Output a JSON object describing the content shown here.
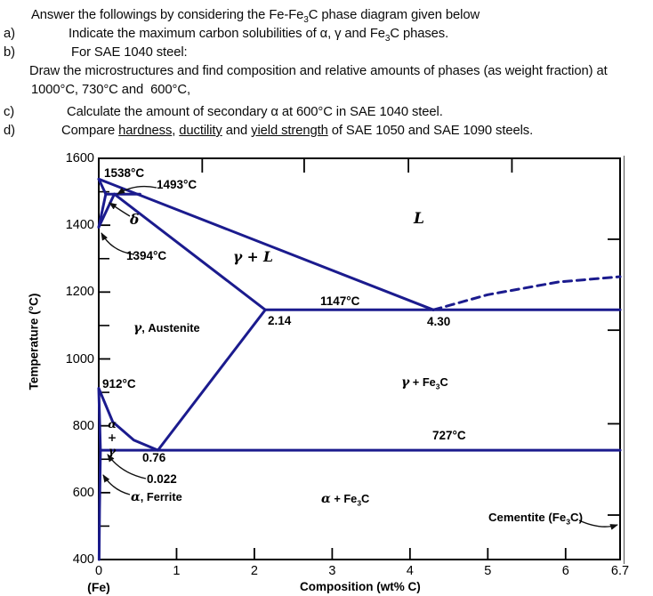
{
  "colors": {
    "phase_line": "#1b1b8e",
    "leader": "#111111",
    "frame": "#000000"
  },
  "question": {
    "intro": {
      "pre": "Answer the followings by considering the Fe-Fe",
      "sub": "3",
      "post": "C phase diagram given below"
    },
    "a": {
      "label": "a)",
      "pre": "Indicate the maximum carbon solubilities of α, γ and Fe",
      "sub": "3",
      "post": "C phases."
    },
    "b": {
      "label": "b)",
      "text": "For SAE 1040 steel:",
      "cont1": "Draw the microstructures and find composition and relative amounts of phases (as weight fraction) at",
      "cont2": "1000°C, 730°C and  600°C,"
    },
    "c": {
      "label": "c)",
      "text": "Calculate the amount of secondary α at 600°C in SAE 1040 steel."
    },
    "d": {
      "label": "d)",
      "p1": "Compare ",
      "u1": "hardness",
      "p2": ", ",
      "u2": "ductility",
      "p3": " and ",
      "u3": "yield strength",
      "p4": " of SAE 1050 and SAE 1090 steels."
    }
  },
  "diagram": {
    "y_axis_title": "Temperature (°C)",
    "x_axis_title": "Composition (wt% C)",
    "fe_label": "(Fe)",
    "callouts": {
      "t1538": "1538°C",
      "t1493": "1493°C",
      "t1394": "1394°C",
      "t1147": "1147°C",
      "t912": "912°C",
      "t727": "727°C",
      "c214": "2.14",
      "c430": "4.30",
      "c076": "0.76",
      "c0022": "0.022"
    },
    "regions": {
      "delta": "δ",
      "gamma_plus_L": "γ + L",
      "liquid": "L",
      "gamma_austenite": {
        "greek": "γ",
        "rest": ", Austenite"
      },
      "alpha_stack": {
        "l1": "α",
        "l2": "+",
        "l3": "γ"
      },
      "alpha_ferrite": {
        "greek": "α",
        "rest": ", Ferrite"
      },
      "alpha_fe3c": {
        "greek": "α",
        "mid": " + Fe",
        "sub": "3",
        "end": "C"
      },
      "gamma_fe3c": {
        "greek": "γ",
        "mid": " + Fe",
        "sub": "3",
        "end": "C"
      },
      "cementite": {
        "pre": "Cementite (Fe",
        "sub": "3",
        "end": "C)"
      }
    }
  },
  "chart_data": {
    "type": "line",
    "title": "Fe-Fe3C phase diagram",
    "xlabel": "Composition (wt% C)",
    "ylabel": "Temperature (°C)",
    "xlim": [
      0,
      6.7
    ],
    "ylim": [
      400,
      1600
    ],
    "grid": false,
    "axes": {
      "x_major": [
        {
          "v": 0,
          "label": "0"
        },
        {
          "v": 1,
          "label": "1"
        },
        {
          "v": 2,
          "label": "2"
        },
        {
          "v": 3,
          "label": "3"
        },
        {
          "v": 4,
          "label": "4"
        },
        {
          "v": 5,
          "label": "5"
        },
        {
          "v": 6,
          "label": "6"
        },
        {
          "v": 6.7,
          "label": "6.7"
        }
      ],
      "y_major": [
        {
          "v": 400,
          "label": "400"
        },
        {
          "v": 600,
          "label": "600"
        },
        {
          "v": 800,
          "label": "800"
        },
        {
          "v": 1000,
          "label": "1000"
        },
        {
          "v": 1200,
          "label": "1200"
        },
        {
          "v": 1400,
          "label": "1400"
        },
        {
          "v": 1600,
          "label": "1600"
        }
      ],
      "y_minor": [
        500,
        700,
        900,
        1100,
        1300,
        1500
      ],
      "top_ticks": [
        1.33,
        2.64,
        3.98,
        5.31
      ],
      "right_ticks": [
        1358,
        1086,
        806,
        533
      ]
    },
    "key_points": {
      "melting_Fe_C": 1538,
      "peritectic_C": 1493,
      "delta_to_gamma_C": 1394,
      "eutectic": {
        "wt": 4.3,
        "C": 1147
      },
      "gamma_max_solubility_wt": 2.14,
      "alpha_to_gamma_C": 912,
      "eutectoid": {
        "wt": 0.76,
        "C": 727
      },
      "alpha_max_solubility_wt": 0.022,
      "cementite_wt": 6.7
    },
    "boundaries": [
      {
        "name": "liquidus",
        "style": "solid",
        "points": [
          [
            0,
            1538
          ],
          [
            4.3,
            1147
          ]
        ]
      },
      {
        "name": "liquidus-metastable-extension",
        "style": "dashed",
        "points": [
          [
            4.3,
            1147
          ],
          [
            5.0,
            1192
          ],
          [
            5.9,
            1230
          ],
          [
            6.7,
            1246
          ]
        ]
      },
      {
        "name": "delta-solidus",
        "style": "solid",
        "points": [
          [
            0,
            1538
          ],
          [
            0.09,
            1493
          ]
        ]
      },
      {
        "name": "peritectic-line",
        "style": "solid",
        "points": [
          [
            0.09,
            1493
          ],
          [
            0.53,
            1493
          ]
        ]
      },
      {
        "name": "delta-gamma-left",
        "style": "solid",
        "points": [
          [
            0.09,
            1493
          ],
          [
            0,
            1394
          ]
        ]
      },
      {
        "name": "delta-gamma-right",
        "style": "solid",
        "points": [
          [
            0.2,
            1493
          ],
          [
            0,
            1394
          ]
        ]
      },
      {
        "name": "gamma-solidus",
        "style": "solid",
        "points": [
          [
            0.2,
            1493
          ],
          [
            2.14,
            1147
          ]
        ]
      },
      {
        "name": "eutectic-line",
        "style": "solid",
        "points": [
          [
            2.14,
            1147
          ],
          [
            6.7,
            1147
          ]
        ]
      },
      {
        "name": "acm",
        "style": "solid",
        "points": [
          [
            2.14,
            1147
          ],
          [
            0.76,
            727
          ]
        ]
      },
      {
        "name": "a3",
        "style": "solid",
        "points": [
          [
            0,
            912
          ],
          [
            0.18,
            812
          ],
          [
            0.45,
            757
          ],
          [
            0.76,
            727
          ]
        ]
      },
      {
        "name": "alpha-gamma-left",
        "style": "solid",
        "points": [
          [
            0,
            912
          ],
          [
            0.022,
            727
          ]
        ]
      },
      {
        "name": "alpha-solvus",
        "style": "solid",
        "points": [
          [
            0.022,
            727
          ],
          [
            0.01,
            550
          ],
          [
            0.005,
            400
          ]
        ]
      },
      {
        "name": "eutectoid-line",
        "style": "solid",
        "points": [
          [
            0.022,
            727
          ],
          [
            6.7,
            727
          ]
        ]
      }
    ],
    "leaders": [
      {
        "name": "to-peritectic",
        "from": [
          176,
          211
        ],
        "ctrl": [
          152,
          206
        ],
        "to": [
          132,
          218
        ]
      },
      {
        "name": "to-delta-region",
        "from": [
          146,
          243
        ],
        "ctrl": [
          136,
          237
        ],
        "to": [
          123,
          228
        ]
      },
      {
        "name": "to-1394",
        "from": [
          151,
          286
        ],
        "ctrl": [
          126,
          283
        ],
        "to": [
          114,
          262
        ]
      },
      {
        "name": "to-0022",
        "from": [
          164,
          538
        ],
        "ctrl": [
          136,
          532
        ],
        "to": [
          121,
          511
        ]
      },
      {
        "name": "to-ferrite",
        "from": [
          146,
          556
        ],
        "ctrl": [
          127,
          551
        ],
        "to": [
          116,
          534
        ]
      },
      {
        "name": "to-cementite",
        "from": [
          651,
          585
        ],
        "ctrl": [
          675,
          596
        ],
        "to": [
          694,
          590
        ]
      }
    ]
  }
}
